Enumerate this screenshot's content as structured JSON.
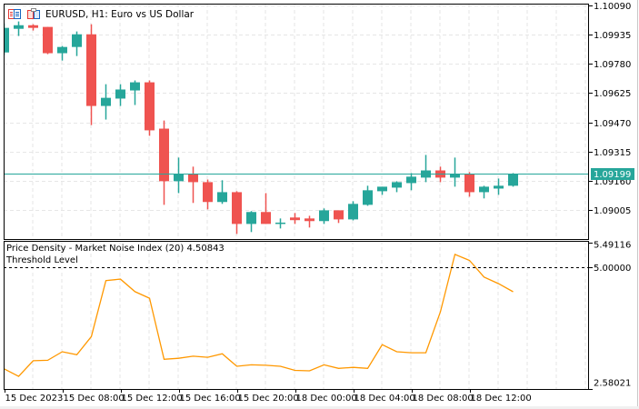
{
  "header": {
    "title": "EURUSD, H1:  Euro vs US Dollar",
    "icons": [
      "trade-panel-icon",
      "depth-of-market-icon"
    ]
  },
  "colors": {
    "bull": "#26a69a",
    "bear": "#ef5350",
    "indicator": "#ff9800",
    "price_line": "#26a69a",
    "grid": "#e6e6e6",
    "threshold": "#000000"
  },
  "indicator_panel": {
    "name_label": "Price Density - Market Noise Index (20) 4.50843",
    "threshold_label": "Threshold Level"
  },
  "chart_data": [
    {
      "type": "candlestick",
      "symbol": "EURUSD",
      "timeframe": "H1",
      "y_ticks": [
        "1.10090",
        "1.09935",
        "1.09780",
        "1.09625",
        "1.09470",
        "1.09315",
        "1.09160",
        "1.09005"
      ],
      "ylim": [
        1.09005,
        1.1009
      ],
      "current_price": "1.09199",
      "grid": true,
      "ohlc": [
        [
          1.0984,
          1.09994,
          1.09826,
          1.0997
        ],
        [
          1.09965,
          1.10004,
          1.09927,
          1.09984
        ],
        [
          1.09984,
          1.09989,
          1.09956,
          1.0997
        ],
        [
          1.09975,
          1.09975,
          1.09831,
          1.09836
        ],
        [
          1.09836,
          1.09874,
          1.09797,
          1.09869
        ],
        [
          1.09869,
          1.09951,
          1.09821,
          1.09936
        ],
        [
          1.09936,
          1.09989,
          1.09456,
          1.09557
        ],
        [
          1.09557,
          1.09672,
          1.09485,
          1.096
        ],
        [
          1.09596,
          1.09672,
          1.09557,
          1.09644
        ],
        [
          1.09639,
          1.09692,
          1.09562,
          1.09682
        ],
        [
          1.09682,
          1.09692,
          1.09399,
          1.09428
        ],
        [
          1.09437,
          1.0948,
          1.09034,
          1.09159
        ],
        [
          1.09159,
          1.09284,
          1.09096,
          1.09197
        ],
        [
          1.09197,
          1.09236,
          1.09044,
          1.09154
        ],
        [
          1.09154,
          1.09168,
          1.0901,
          1.09049
        ],
        [
          1.09049,
          1.09164,
          1.09039,
          1.09101
        ],
        [
          1.09101,
          1.09106,
          1.0888,
          1.08933
        ],
        [
          1.08933,
          1.09001,
          1.0889,
          1.08996
        ],
        [
          1.08996,
          1.09096,
          1.08933,
          1.08933
        ],
        [
          1.08938,
          1.08962,
          1.08909,
          1.0894
        ],
        [
          1.08967,
          1.08991,
          1.08933,
          1.08953
        ],
        [
          1.08962,
          1.08976,
          1.08914,
          1.08948
        ],
        [
          1.08948,
          1.09015,
          1.08933,
          1.09005
        ],
        [
          1.09005,
          1.09005,
          1.08938,
          1.08957
        ],
        [
          1.08957,
          1.09053,
          1.08952,
          1.09039
        ],
        [
          1.09034,
          1.09135,
          1.09029,
          1.09111
        ],
        [
          1.09106,
          1.0913,
          1.09087,
          1.0913
        ],
        [
          1.09125,
          1.09159,
          1.09101,
          1.09154
        ],
        [
          1.09149,
          1.09202,
          1.09111,
          1.09183
        ],
        [
          1.09178,
          1.09298,
          1.09154,
          1.09216
        ],
        [
          1.09216,
          1.09236,
          1.09154,
          1.09178
        ],
        [
          1.09178,
          1.09284,
          1.0913,
          1.09197
        ],
        [
          1.09197,
          1.09207,
          1.09077,
          1.09101
        ],
        [
          1.09101,
          1.09135,
          1.09068,
          1.0913
        ],
        [
          1.0912,
          1.09173,
          1.09087,
          1.09135
        ],
        [
          1.09135,
          1.09202,
          1.0913,
          1.09199
        ]
      ]
    },
    {
      "type": "line",
      "series": [
        {
          "name": "Price Density - Market Noise Index (20)",
          "values": [
            2.98,
            2.83,
            3.14,
            3.15,
            3.32,
            3.26,
            3.62,
            4.73,
            4.76,
            4.51,
            4.38,
            3.17,
            3.19,
            3.23,
            3.21,
            3.28,
            3.03,
            3.06,
            3.05,
            3.03,
            2.95,
            2.94,
            3.06,
            2.99,
            3.01,
            2.99,
            3.46,
            3.32,
            3.3,
            3.3,
            4.11,
            5.25,
            5.13,
            4.8,
            4.67,
            4.50843
          ]
        }
      ],
      "y_ticks": [
        "5.49116",
        "5.00000",
        "2.58021"
      ],
      "ylim": [
        2.58021,
        5.49116
      ],
      "threshold": 5.0,
      "grid": true
    }
  ],
  "x_axis": {
    "labels": [
      {
        "text": "15 Dec 2023",
        "bar": 0
      },
      {
        "text": "15 Dec 08:00",
        "bar": 4
      },
      {
        "text": "15 Dec 12:00",
        "bar": 8
      },
      {
        "text": "15 Dec 16:00",
        "bar": 12
      },
      {
        "text": "15 Dec 20:00",
        "bar": 16
      },
      {
        "text": "18 Dec 00:00",
        "bar": 20
      },
      {
        "text": "18 Dec 04:00",
        "bar": 24
      },
      {
        "text": "18 Dec 08:00",
        "bar": 28
      },
      {
        "text": "18 Dec 12:00",
        "bar": 32
      }
    ]
  }
}
